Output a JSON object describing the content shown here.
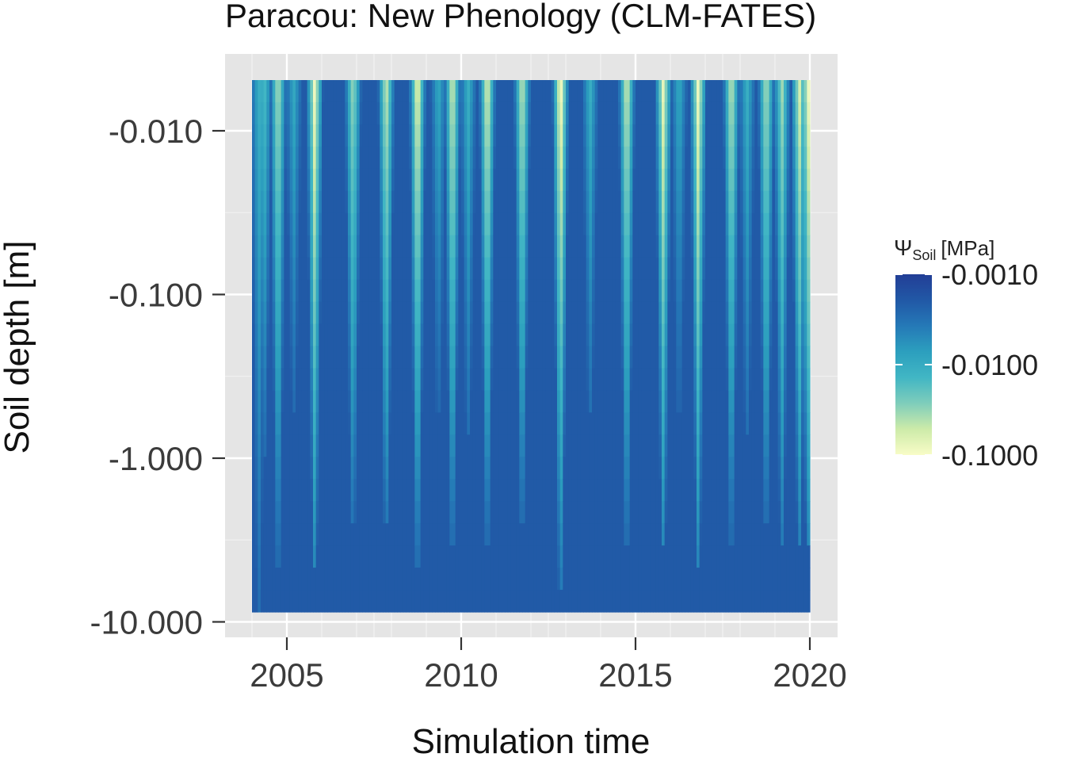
{
  "chart_data": {
    "type": "heatmap",
    "title": "Paracou: New Phenology (CLM-FATES)",
    "xlabel": "Simulation time",
    "ylabel": "Soil depth [m]",
    "x_range": [
      2004.0,
      2020.0
    ],
    "x_ticks": [
      2005,
      2010,
      2015,
      2020
    ],
    "x_tick_labels": [
      "2005",
      "2010",
      "2015",
      "2020"
    ],
    "y_scale": "log",
    "y_ticks": [
      -0.01,
      -0.1,
      -1.0,
      -10.0
    ],
    "y_tick_labels": [
      "-0.010",
      "-0.100",
      "-1.000",
      "-10.000"
    ],
    "depth_range": [
      -0.005,
      -9.0
    ],
    "legend": {
      "title_symbol": "Ψ",
      "title_subscript": "Soil",
      "title_unit": "[MPa]",
      "scale": "log",
      "ticks": [
        -0.001,
        -0.01,
        -0.1
      ],
      "tick_labels": [
        "-0.0010",
        "-0.0100",
        "-0.1000"
      ],
      "colors": [
        "#f8fcc7",
        "#cdeba9",
        "#7fcdbb",
        "#41b6c4",
        "#2c9fbe",
        "#2579b7",
        "#2158a6",
        "#223e96"
      ],
      "placement": "right"
    },
    "wet_value": -0.002,
    "grid": true,
    "dry_seasons": [
      {
        "center": 2004.2,
        "peak": -0.012,
        "max_depth": -8.0
      },
      {
        "center": 2004.35,
        "peak": -0.018,
        "max_depth": -1.0
      },
      {
        "center": 2004.75,
        "peak": -0.05,
        "max_depth": -4.5
      },
      {
        "center": 2005.2,
        "peak": -0.01,
        "max_depth": -0.5
      },
      {
        "center": 2005.8,
        "peak": -0.1,
        "max_depth": -4.8
      },
      {
        "center": 2006.9,
        "peak": -0.04,
        "max_depth": -2.8
      },
      {
        "center": 2007.85,
        "peak": -0.06,
        "max_depth": -2.8
      },
      {
        "center": 2008.75,
        "peak": -0.1,
        "max_depth": -4.5
      },
      {
        "center": 2009.35,
        "peak": -0.01,
        "max_depth": -0.6
      },
      {
        "center": 2009.75,
        "peak": -0.07,
        "max_depth": -3.5
      },
      {
        "center": 2010.2,
        "peak": -0.012,
        "max_depth": -0.8
      },
      {
        "center": 2010.75,
        "peak": -0.08,
        "max_depth": -3.0
      },
      {
        "center": 2011.75,
        "peak": -0.06,
        "max_depth": -2.5
      },
      {
        "center": 2012.85,
        "peak": -0.13,
        "max_depth": -5.5
      },
      {
        "center": 2013.7,
        "peak": -0.012,
        "max_depth": -0.6
      },
      {
        "center": 2014.75,
        "peak": -0.07,
        "max_depth": -3.2
      },
      {
        "center": 2015.8,
        "peak": -0.09,
        "max_depth": -3.5
      },
      {
        "center": 2016.25,
        "peak": -0.01,
        "max_depth": -0.6
      },
      {
        "center": 2016.8,
        "peak": -0.1,
        "max_depth": -4.0
      },
      {
        "center": 2017.75,
        "peak": -0.06,
        "max_depth": -3.0
      },
      {
        "center": 2018.2,
        "peak": -0.012,
        "max_depth": -0.8
      },
      {
        "center": 2018.75,
        "peak": -0.05,
        "max_depth": -2.8
      },
      {
        "center": 2019.2,
        "peak": -0.04,
        "max_depth": -3.0
      },
      {
        "center": 2019.7,
        "peak": -0.07,
        "max_depth": -3.2
      },
      {
        "center": 2019.95,
        "peak": -0.1,
        "max_depth": -3.5
      }
    ]
  }
}
